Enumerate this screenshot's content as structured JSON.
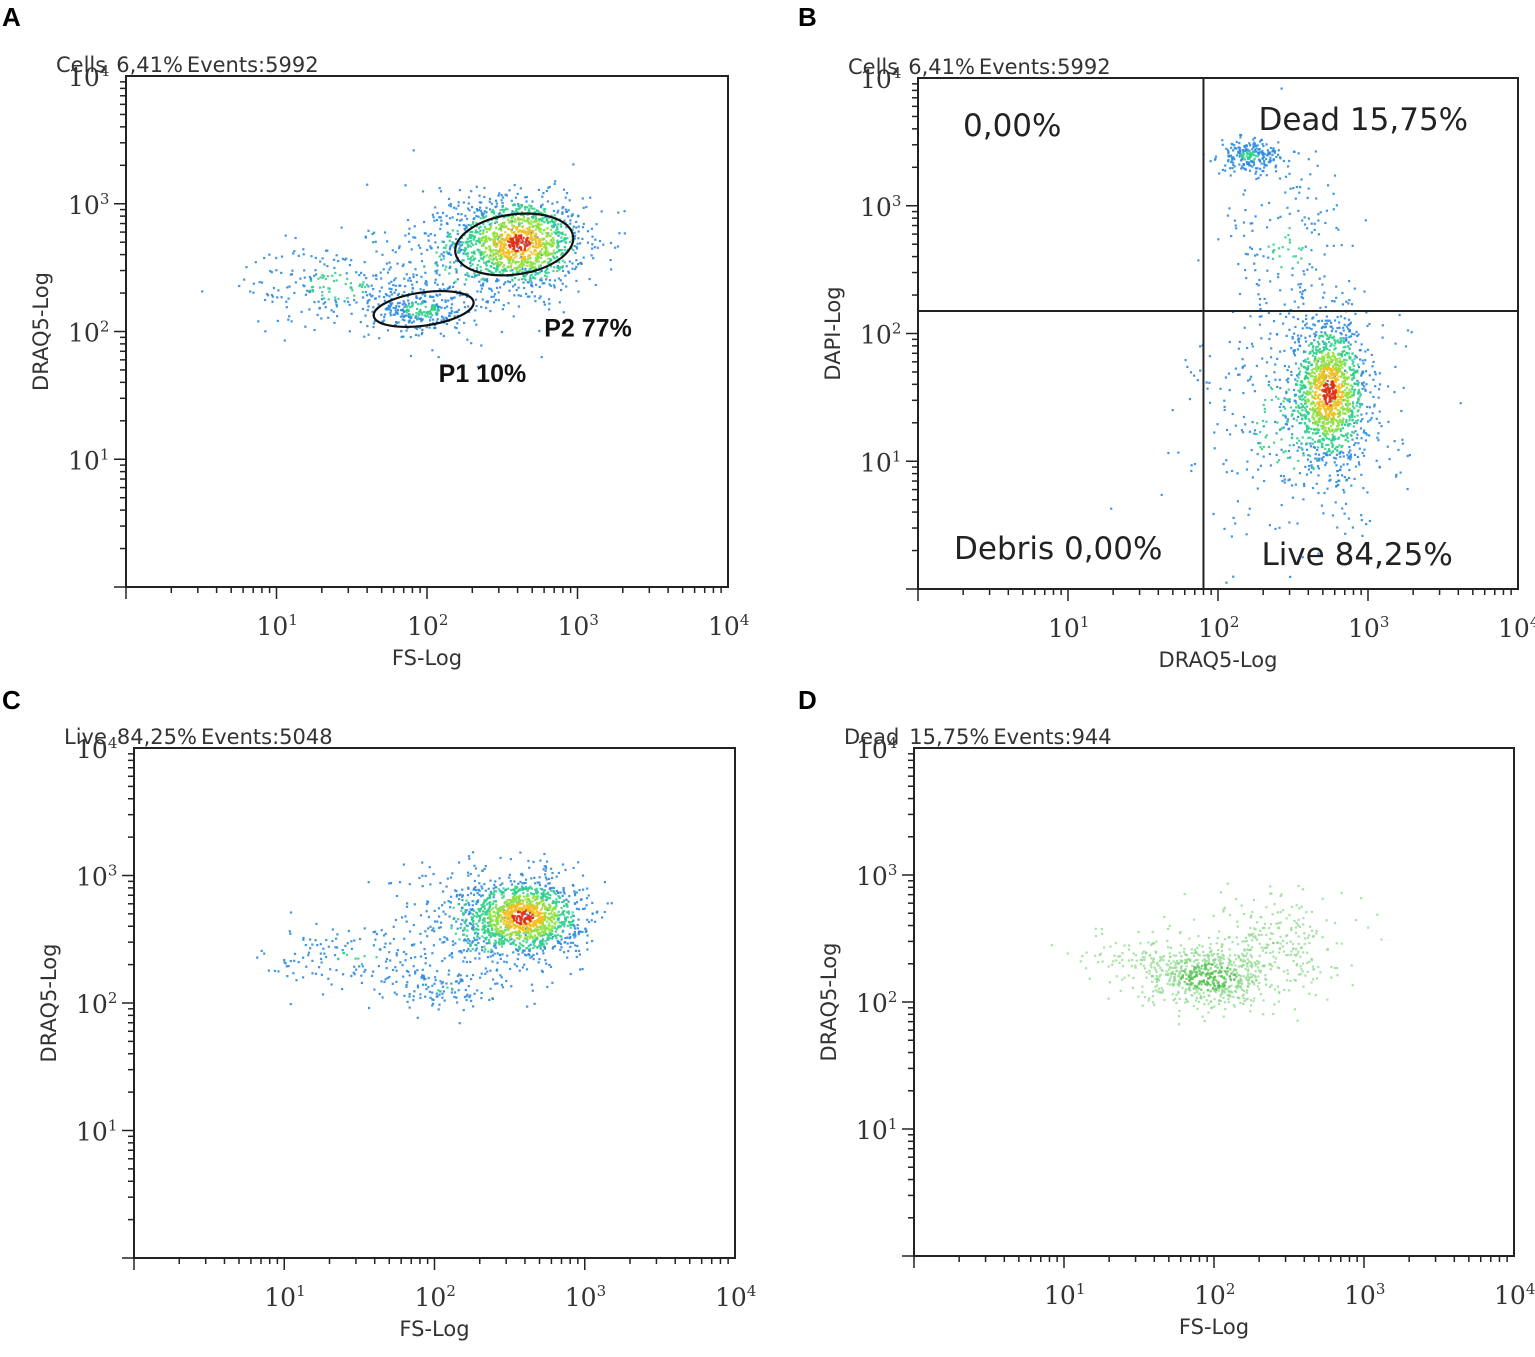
{
  "chart_data": [
    {
      "panel": "A",
      "type": "scatter",
      "header": {
        "gate": "Cells",
        "percent": "6,41%",
        "events_label": "Events:",
        "events": "5992"
      },
      "xlabel": "FS-Log",
      "ylabel": "DRAQ5-Log",
      "xlim": [
        1,
        10000
      ],
      "ylim": [
        1,
        10000
      ],
      "xscale": "log",
      "yscale": "log",
      "x_ticks": [
        10,
        100,
        1000,
        10000
      ],
      "y_ticks": [
        10,
        100,
        1000,
        10000
      ],
      "clusters": [
        {
          "x": 400,
          "y": 500,
          "spread_x": 0.22,
          "spread_y": 0.18,
          "count": 1300,
          "colormap": "jet"
        },
        {
          "x": 90,
          "y": 150,
          "spread_x": 0.16,
          "spread_y": 0.09,
          "count": 260,
          "colormap": "jet"
        },
        {
          "x": 25,
          "y": 230,
          "spread_x": 0.3,
          "spread_y": 0.16,
          "count": 240,
          "colormap": "jet"
        },
        {
          "x": 200,
          "y": 400,
          "spread_x": 0.35,
          "spread_y": 0.3,
          "count": 300,
          "colormap": "jet"
        }
      ],
      "gates": [
        {
          "name": "P2",
          "label": "P2 77%",
          "center": [
            380,
            480
          ],
          "log_radius_x": 0.395,
          "log_radius_y": 0.235
        },
        {
          "name": "P1",
          "label": "P1 10%",
          "center": [
            95,
            150
          ],
          "log_radius_x": 0.335,
          "log_radius_y": 0.13
        }
      ]
    },
    {
      "panel": "B",
      "type": "scatter",
      "header": {
        "gate": "Cells",
        "percent": "6,41%",
        "events_label": "Events:",
        "events": "5992"
      },
      "xlabel": "DRAQ5-Log",
      "ylabel": "DAPI-Log",
      "xlim": [
        1,
        10000
      ],
      "ylim": [
        1,
        10000
      ],
      "xscale": "log",
      "yscale": "log",
      "x_ticks": [
        10,
        100,
        1000,
        10000
      ],
      "y_ticks": [
        10,
        100,
        1000,
        10000
      ],
      "quadrant_split": {
        "x": 80,
        "y": 150
      },
      "quadrants": {
        "upper_left": "0,00%",
        "upper_right": "Dead 15,75%",
        "lower_left": "Debris 0,00%",
        "lower_right": "Live 84,25%"
      },
      "clusters": [
        {
          "x": 540,
          "y": 35,
          "spread_x": 0.13,
          "spread_y": 0.28,
          "count": 1400,
          "colormap": "jet"
        },
        {
          "x": 350,
          "y": 20,
          "spread_x": 0.35,
          "spread_y": 0.45,
          "count": 350,
          "colormap": "jet"
        },
        {
          "x": 160,
          "y": 2500,
          "spread_x": 0.1,
          "spread_y": 0.06,
          "count": 220,
          "colormap": "jet"
        },
        {
          "x": 280,
          "y": 500,
          "spread_x": 0.22,
          "spread_y": 0.4,
          "count": 180,
          "colormap": "jet"
        }
      ]
    },
    {
      "panel": "C",
      "type": "scatter",
      "header": {
        "gate": "Live",
        "percent": "84,25%",
        "events_label": "Events:",
        "events": "5048"
      },
      "xlabel": "FS-Log",
      "ylabel": "DRAQ5-Log",
      "xlim": [
        1,
        10000
      ],
      "ylim": [
        1,
        10000
      ],
      "xscale": "log",
      "yscale": "log",
      "x_ticks": [
        10,
        100,
        1000,
        10000
      ],
      "y_ticks": [
        10,
        100,
        1000,
        10000
      ],
      "clusters": [
        {
          "x": 380,
          "y": 480,
          "spread_x": 0.2,
          "spread_y": 0.15,
          "count": 1300,
          "colormap": "jet"
        },
        {
          "x": 200,
          "y": 420,
          "spread_x": 0.3,
          "spread_y": 0.28,
          "count": 300,
          "colormap": "jet"
        },
        {
          "x": 30,
          "y": 230,
          "spread_x": 0.3,
          "spread_y": 0.14,
          "count": 150,
          "colormap": "jet"
        },
        {
          "x": 110,
          "y": 130,
          "spread_x": 0.22,
          "spread_y": 0.08,
          "count": 100,
          "colormap": "jet"
        }
      ]
    },
    {
      "panel": "D",
      "type": "scatter",
      "header": {
        "gate": "Dead",
        "percent": "15,75%",
        "events_label": "Events:",
        "events": "944"
      },
      "xlabel": "FS-Log",
      "ylabel": "DRAQ5-Log",
      "xlim": [
        1,
        10000
      ],
      "ylim": [
        1,
        10000
      ],
      "xscale": "log",
      "yscale": "log",
      "x_ticks": [
        10,
        100,
        1000,
        10000
      ],
      "y_ticks": [
        10,
        100,
        1000,
        10000
      ],
      "clusters": [
        {
          "x": 90,
          "y": 160,
          "spread_x": 0.22,
          "spread_y": 0.12,
          "count": 650,
          "colormap": "green"
        },
        {
          "x": 250,
          "y": 300,
          "spread_x": 0.22,
          "spread_y": 0.2,
          "count": 250,
          "colormap": "green"
        },
        {
          "x": 30,
          "y": 230,
          "spread_x": 0.2,
          "spread_y": 0.1,
          "count": 80,
          "colormap": "green"
        }
      ]
    }
  ]
}
